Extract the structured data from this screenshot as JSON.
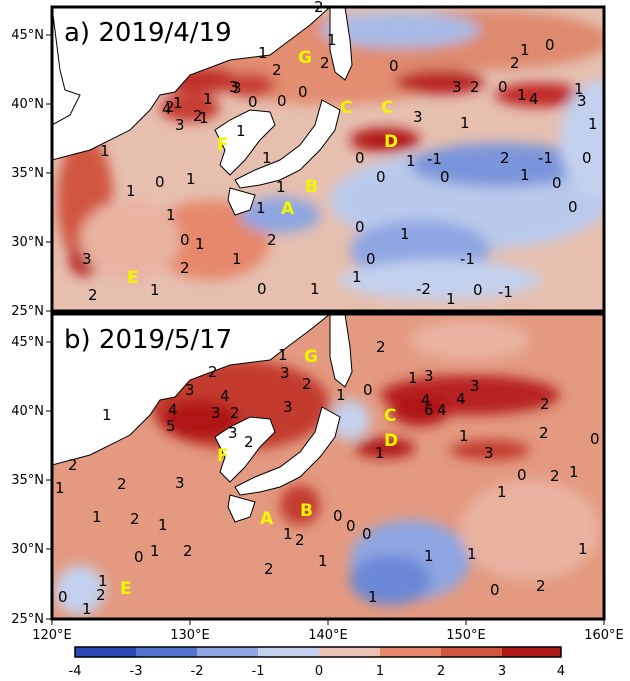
{
  "colors": {
    "ocean_base": "#e3b8a8",
    "land": "#ffffff",
    "frame": "#000000",
    "region_label": "#f5f500",
    "colorbar_stops": [
      "#2a47b5",
      "#5573d0",
      "#8ea6e2",
      "#c4d1ee",
      "#ecc3b4",
      "#e6886c",
      "#d1563f",
      "#b01818"
    ]
  },
  "panels": [
    {
      "title": "a) 2019/4/19",
      "y_ticks": [
        "45°N",
        "40°N",
        "35°N",
        "30°N",
        "25°N"
      ],
      "regions": [
        "A",
        "B",
        "C",
        "C",
        "D",
        "E",
        "F",
        "G"
      ],
      "contour_labels": [
        "1",
        "2",
        "3",
        "1",
        "0",
        "2",
        "1",
        "1",
        "0",
        "0",
        "2",
        "3",
        "3",
        "2",
        "4",
        "2",
        "1",
        "1",
        "0",
        "1",
        "1",
        "3",
        "2",
        "1",
        "1",
        "0",
        "0",
        "1",
        "0",
        "1",
        "1",
        "0",
        "1",
        "1",
        "1",
        "2",
        "1",
        "2",
        "1",
        "1",
        "0",
        "0",
        "-1",
        "0",
        "1",
        "0",
        "1",
        "-2",
        "1",
        "0",
        "-1",
        "1",
        "0",
        "1",
        "2",
        "3",
        "3",
        "2",
        "0",
        "4",
        "3",
        "1",
        "1",
        "2",
        "0",
        "-1",
        "1",
        "0",
        "-1",
        "0"
      ]
    },
    {
      "title": "b) 2019/5/17",
      "y_ticks": [
        "45°N",
        "40°N",
        "35°N",
        "30°N",
        "25°N"
      ],
      "regions": [
        "A",
        "B",
        "C",
        "D",
        "E",
        "F",
        "G"
      ],
      "contour_labels": [
        "2",
        "1",
        "3",
        "4",
        "3",
        "4",
        "5",
        "3",
        "2",
        "3",
        "2",
        "3",
        "2",
        "3",
        "2",
        "1",
        "2",
        "1",
        "1",
        "2",
        "1",
        "0",
        "2",
        "1",
        "1",
        "2",
        "1",
        "2",
        "2",
        "1",
        "0",
        "0",
        "1",
        "0",
        "0",
        "1",
        "1",
        "1",
        "1",
        "0",
        "2",
        "3",
        "1",
        "4",
        "6",
        "4",
        "3",
        "4",
        "2",
        "1",
        "2",
        "3",
        "1",
        "0",
        "2",
        "1",
        "0",
        "1",
        "2",
        "1",
        "0"
      ]
    }
  ],
  "x_ticks": [
    "120°E",
    "130°E",
    "140°E",
    "150°E",
    "160°E"
  ],
  "colorbar": {
    "ticks": [
      "-4",
      "-3",
      "-2",
      "-1",
      "0",
      "1",
      "2",
      "3",
      "4"
    ],
    "range": [
      -4,
      4
    ]
  }
}
